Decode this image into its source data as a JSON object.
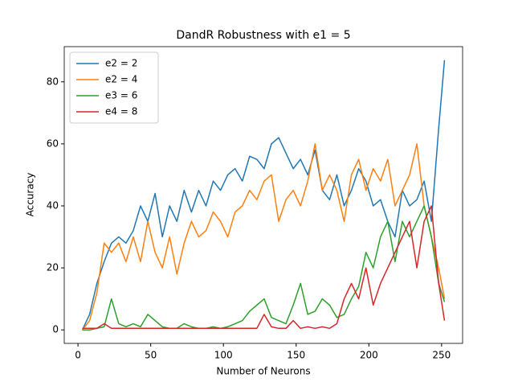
{
  "chart_data": {
    "type": "line",
    "title": "DandR Robustness with e1 = 5",
    "xlabel": "Number of Neurons",
    "ylabel": "Accuracy",
    "x": [
      3,
      8,
      13,
      18,
      23,
      28,
      33,
      38,
      43,
      48,
      53,
      58,
      63,
      68,
      73,
      78,
      83,
      88,
      93,
      98,
      103,
      108,
      113,
      118,
      123,
      128,
      133,
      138,
      143,
      148,
      153,
      158,
      163,
      168,
      173,
      178,
      183,
      188,
      193,
      198,
      203,
      208,
      213,
      218,
      223,
      228,
      233,
      238,
      243,
      248,
      252
    ],
    "series": [
      {
        "name": "e2 = 2",
        "color": "#1f77b4",
        "values": [
          0,
          5,
          15,
          22,
          28,
          30,
          28,
          32,
          40,
          35,
          44,
          30,
          40,
          35,
          45,
          38,
          45,
          40,
          48,
          45,
          50,
          52,
          48,
          56,
          55,
          52,
          60,
          62,
          57,
          52,
          55,
          50,
          58,
          45,
          42,
          50,
          40,
          45,
          52,
          48,
          40,
          42,
          35,
          30,
          45,
          40,
          42,
          48,
          35,
          65,
          87
        ]
      },
      {
        "name": "e2 = 4",
        "color": "#ff7f0e",
        "values": [
          0,
          3,
          12,
          28,
          25,
          28,
          22,
          30,
          22,
          35,
          25,
          20,
          30,
          18,
          28,
          35,
          30,
          32,
          38,
          35,
          30,
          38,
          40,
          45,
          42,
          48,
          50,
          35,
          42,
          45,
          40,
          48,
          60,
          45,
          50,
          45,
          35,
          50,
          55,
          45,
          52,
          48,
          55,
          40,
          45,
          50,
          60,
          40,
          30,
          20,
          10
        ]
      },
      {
        "name": "e3 = 6",
        "color": "#2ca02c",
        "values": [
          0,
          0,
          0.5,
          1,
          10,
          2,
          1,
          2,
          1,
          5,
          3,
          1,
          0.5,
          0.5,
          2,
          1,
          0.5,
          0.5,
          1,
          0.5,
          1,
          2,
          3,
          6,
          8,
          10,
          4,
          3,
          2,
          8,
          15,
          5,
          6,
          10,
          8,
          4,
          5,
          10,
          14,
          25,
          20,
          30,
          35,
          22,
          35,
          30,
          35,
          40,
          30,
          15,
          9
        ]
      },
      {
        "name": "e4 = 8",
        "color": "#d62728",
        "values": [
          0.5,
          0.5,
          0.5,
          2,
          0.5,
          0.5,
          0.5,
          0.5,
          0.5,
          0.5,
          0.5,
          0.5,
          0.5,
          0.5,
          0.5,
          0.5,
          0.5,
          0.5,
          0.5,
          0.5,
          0.5,
          0.5,
          0.5,
          0.5,
          0.5,
          5,
          1,
          0.5,
          0.5,
          3,
          0.5,
          1,
          0.5,
          1,
          0.5,
          2,
          10,
          15,
          10,
          20,
          8,
          15,
          20,
          25,
          30,
          35,
          20,
          35,
          40,
          15,
          3
        ]
      }
    ],
    "xlim": [
      -9.45,
      264.45
    ],
    "ylim": [
      -4.35,
      91.35
    ],
    "xticks": [
      0,
      50,
      100,
      150,
      200,
      250
    ],
    "yticks": [
      0,
      20,
      40,
      60,
      80
    ],
    "legend": "upper left"
  }
}
